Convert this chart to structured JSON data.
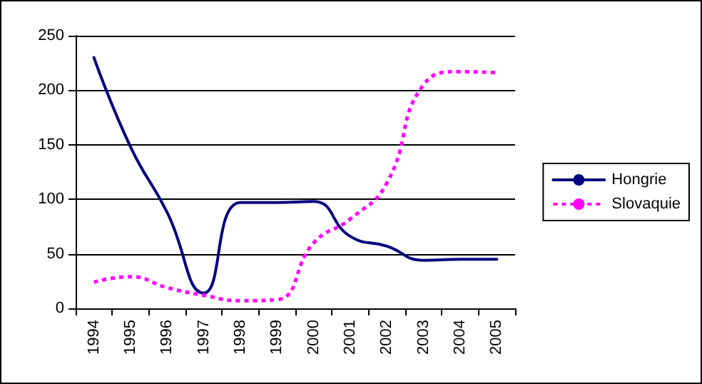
{
  "chart_data": {
    "type": "line",
    "categories": [
      "1994",
      "1995",
      "1996",
      "1997",
      "1998",
      "1999",
      "2000",
      "2001",
      "2002",
      "2003",
      "2004",
      "2005"
    ],
    "series": [
      {
        "name": "Hongrie",
        "color": "#000080",
        "line_style": "solid",
        "values": [
          230,
          148,
          88,
          14,
          97,
          97,
          98,
          66,
          57,
          44,
          45,
          45
        ]
      },
      {
        "name": "Slovaquie",
        "color": "#ff00ff",
        "line_style": "dotted",
        "values": [
          24,
          29,
          19,
          12,
          7,
          8,
          60,
          82,
          115,
          205,
          217,
          216
        ]
      }
    ],
    "ylim": [
      0,
      250
    ],
    "yticks": [
      0,
      50,
      100,
      150,
      200,
      250
    ],
    "grid": "y",
    "legend": "right",
    "marker": "none"
  }
}
